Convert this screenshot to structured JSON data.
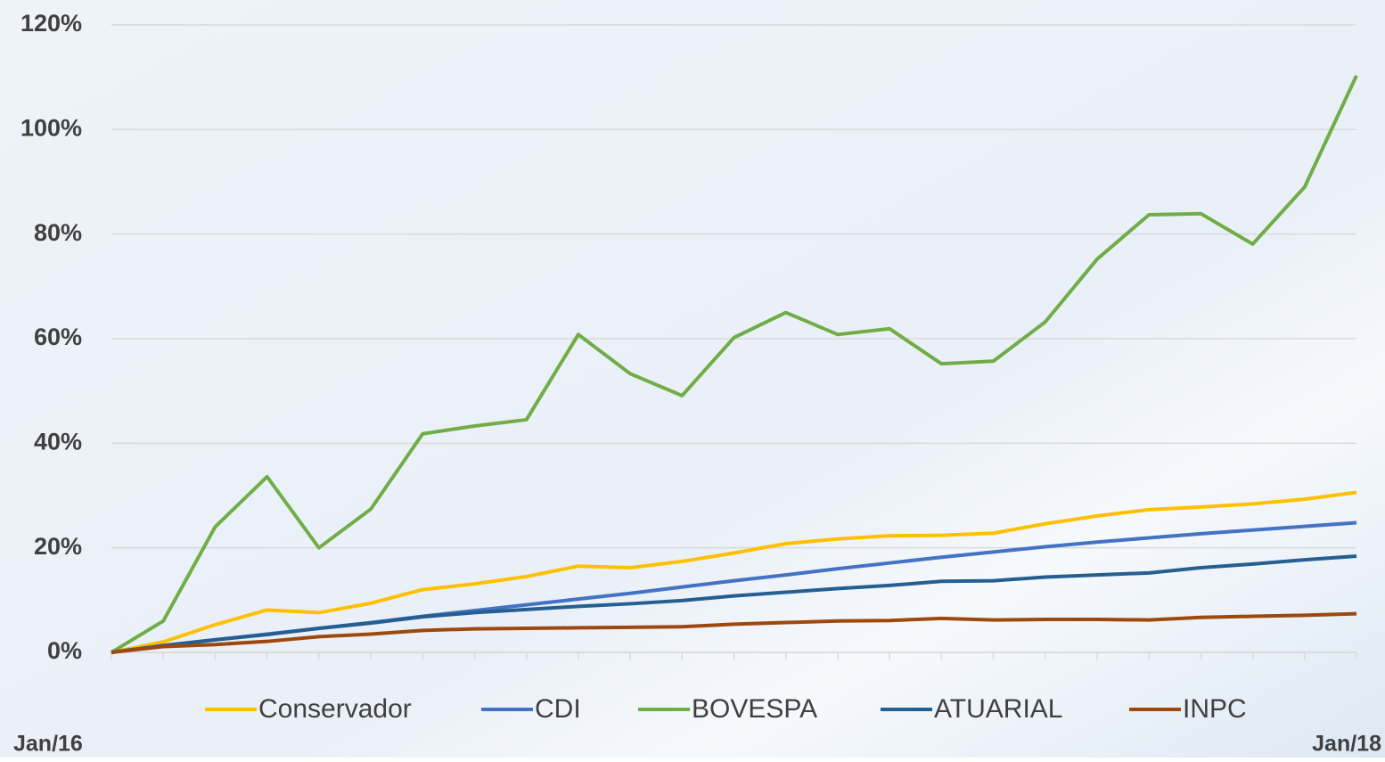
{
  "chart_data": {
    "type": "line",
    "categories": [
      "Jan/16",
      null,
      null,
      null,
      null,
      null,
      null,
      null,
      null,
      null,
      null,
      null,
      null,
      null,
      null,
      null,
      null,
      null,
      null,
      null,
      null,
      null,
      null,
      null,
      "Jan/18"
    ],
    "series": [
      {
        "name": "Conservador",
        "color": "#ffc000",
        "values": [
          0,
          2,
          5.3,
          8.1,
          7.6,
          9.4,
          12,
          13.1,
          14.5,
          16.5,
          16.2,
          17.4,
          19,
          20.8,
          21.7,
          22.3,
          22.4,
          22.8,
          24.6,
          26.1,
          27.3,
          27.8,
          28.4,
          29.3,
          30.6
        ]
      },
      {
        "name": "CDI",
        "color": "#4472c4",
        "values": [
          0,
          1.3,
          2.4,
          3.5,
          4.6,
          5.7,
          6.9,
          8,
          9.1,
          10.2,
          11.3,
          12.5,
          13.7,
          14.8,
          16,
          17.1,
          18.2,
          19.2,
          20.2,
          21.1,
          21.9,
          22.7,
          23.4,
          24.1,
          24.8
        ]
      },
      {
        "name": "BOVESPA",
        "color": "#70ad47",
        "values": [
          0,
          6,
          24,
          33.6,
          20,
          27.4,
          41.8,
          43.3,
          44.5,
          60.8,
          53.3,
          49.1,
          60.2,
          65,
          60.8,
          61.9,
          55.2,
          55.7,
          63.2,
          75.2,
          83.7,
          83.9,
          78.1,
          89,
          110.3
        ]
      },
      {
        "name": "ATUARIAL",
        "color": "#255e91",
        "values": [
          0,
          1.3,
          2.4,
          3.4,
          4.6,
          5.6,
          6.8,
          7.6,
          8.2,
          8.8,
          9.3,
          9.9,
          10.8,
          11.5,
          12.2,
          12.8,
          13.6,
          13.7,
          14.4,
          14.8,
          15.2,
          16.2,
          16.9,
          17.7,
          18.4
        ]
      },
      {
        "name": "INPC",
        "color": "#9e480e",
        "values": [
          0,
          1.1,
          1.5,
          2.1,
          3,
          3.5,
          4.2,
          4.5,
          4.6,
          4.7,
          4.8,
          4.9,
          5.4,
          5.7,
          6,
          6.1,
          6.5,
          6.2,
          6.3,
          6.3,
          6.2,
          6.7,
          6.9,
          7.1,
          7.4
        ]
      }
    ],
    "ylim": [
      0,
      120
    ],
    "yticks": [
      {
        "value": 0,
        "label": "0%"
      },
      {
        "value": 20,
        "label": "20%"
      },
      {
        "value": 40,
        "label": "40%"
      },
      {
        "value": 60,
        "label": "60%"
      },
      {
        "value": 80,
        "label": "80%"
      },
      {
        "value": 100,
        "label": "100%"
      },
      {
        "value": 120,
        "label": "120%"
      }
    ],
    "grid": true,
    "legend": "bottom"
  }
}
